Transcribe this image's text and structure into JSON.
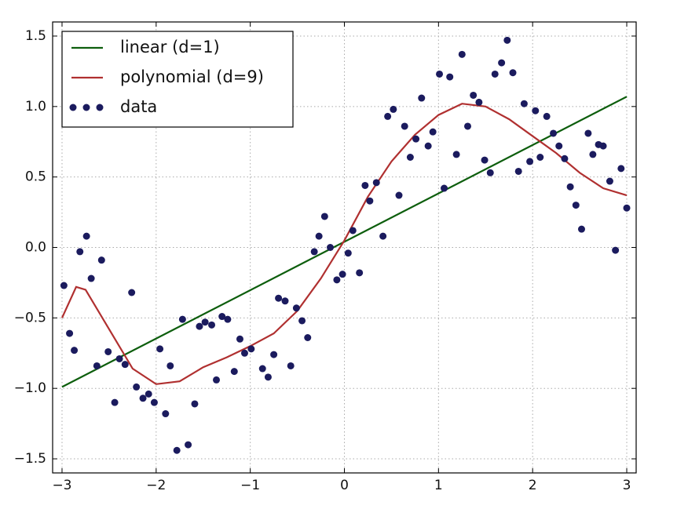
{
  "chart_data": {
    "type": "line",
    "xlim": [
      -3.1,
      3.1
    ],
    "ylim": [
      -1.6,
      1.6
    ],
    "xticks": [
      {
        "value": -3,
        "label": "−3"
      },
      {
        "value": -2,
        "label": "−2"
      },
      {
        "value": -1,
        "label": "−1"
      },
      0,
      1,
      2,
      3
    ],
    "yticks": [
      {
        "value": -1.5,
        "label": "−1.5"
      },
      {
        "value": -1,
        "label": "−1.0"
      },
      {
        "value": -0.5,
        "label": "−0.5"
      },
      {
        "value": 0,
        "label": "0.0"
      },
      {
        "value": 0.5,
        "label": "0.5"
      },
      {
        "value": 1,
        "label": "1.0"
      },
      {
        "value": 1.5,
        "label": "1.5"
      }
    ],
    "grid": true,
    "legend": "upper left",
    "series": [
      {
        "name": "linear (d=1)",
        "type": "line",
        "color": "#0d5e0d",
        "x": [
          -3,
          3
        ],
        "values": [
          -0.99,
          1.07
        ]
      },
      {
        "name": "polynomial (d=9)",
        "type": "line",
        "color": "#b03030",
        "x": [
          -3,
          -2.85,
          -2.75,
          -2.5,
          -2.25,
          -2,
          -1.75,
          -1.5,
          -1.25,
          -1,
          -0.75,
          -0.5,
          -0.25,
          0,
          0.25,
          0.5,
          0.75,
          1,
          1.25,
          1.5,
          1.75,
          2,
          2.25,
          2.5,
          2.75,
          3
        ],
        "values": [
          -0.5,
          -0.28,
          -0.3,
          -0.58,
          -0.86,
          -0.97,
          -0.95,
          -0.85,
          -0.78,
          -0.7,
          -0.61,
          -0.45,
          -0.22,
          0.05,
          0.36,
          0.61,
          0.8,
          0.94,
          1.02,
          1.0,
          0.91,
          0.79,
          0.67,
          0.53,
          0.42,
          0.37
        ]
      },
      {
        "name": "data",
        "type": "scatter",
        "color": "#1b1b5e",
        "x": [
          -2.98,
          -2.92,
          -2.87,
          -2.81,
          -2.74,
          -2.69,
          -2.63,
          -2.58,
          -2.51,
          -2.44,
          -2.39,
          -2.33,
          -2.26,
          -2.21,
          -2.14,
          -2.08,
          -2.02,
          -1.96,
          -1.9,
          -1.85,
          -1.78,
          -1.72,
          -1.66,
          -1.59,
          -1.54,
          -1.48,
          -1.41,
          -1.36,
          -1.3,
          -1.24,
          -1.17,
          -1.11,
          -1.06,
          -0.99,
          -0.87,
          -0.81,
          -0.75,
          -0.7,
          -0.63,
          -0.57,
          -0.51,
          -0.45,
          -0.39,
          -0.32,
          -0.27,
          -0.21,
          -0.15,
          -0.08,
          -0.02,
          0.04,
          0.09,
          0.16,
          0.22,
          0.27,
          0.34,
          0.41,
          0.46,
          0.52,
          0.58,
          0.64,
          0.7,
          0.76,
          0.82,
          0.89,
          0.94,
          1.01,
          1.06,
          1.12,
          1.19,
          1.25,
          1.31,
          1.37,
          1.43,
          1.49,
          1.55,
          1.6,
          1.67,
          1.73,
          1.79,
          1.85,
          1.91,
          1.97,
          2.03,
          2.08,
          2.15,
          2.22,
          2.28,
          2.34,
          2.4,
          2.46,
          2.52,
          2.59,
          2.64,
          2.7,
          2.75,
          2.82,
          2.88,
          2.94,
          3.0
        ],
        "values": [
          -0.27,
          -0.61,
          -0.73,
          -0.03,
          0.08,
          -0.22,
          -0.84,
          -0.09,
          -0.74,
          -1.1,
          -0.79,
          -0.83,
          -0.32,
          -0.99,
          -1.07,
          -1.04,
          -1.1,
          -0.72,
          -1.18,
          -0.84,
          -1.44,
          -0.51,
          -1.4,
          -1.11,
          -0.56,
          -0.53,
          -0.55,
          -0.94,
          -0.49,
          -0.51,
          -0.88,
          -0.65,
          -0.75,
          -0.72,
          -0.86,
          -0.92,
          -0.76,
          -0.36,
          -0.38,
          -0.84,
          -0.43,
          -0.52,
          -0.64,
          -0.03,
          0.08,
          0.22,
          0.0,
          -0.23,
          -0.19,
          -0.04,
          0.12,
          -0.18,
          0.44,
          0.33,
          0.46,
          0.08,
          0.93,
          0.98,
          0.37,
          0.86,
          0.64,
          0.77,
          1.06,
          0.72,
          0.82,
          1.23,
          0.42,
          1.21,
          0.66,
          1.37,
          0.86,
          1.08,
          1.03,
          0.62,
          0.53,
          1.23,
          1.31,
          1.47,
          1.24,
          0.54,
          1.02,
          0.61,
          0.97,
          0.64,
          0.93,
          0.81,
          0.72,
          0.63,
          0.43,
          0.3,
          0.13,
          0.81,
          0.66,
          0.73,
          0.72,
          0.47,
          -0.02,
          0.56,
          0.28
        ]
      }
    ]
  }
}
